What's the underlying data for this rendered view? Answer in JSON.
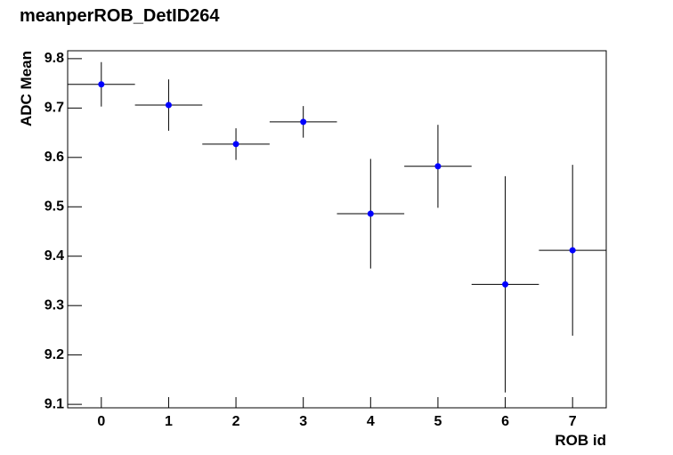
{
  "chart_data": {
    "type": "scatter",
    "title": "meanperROB_DetID264",
    "x_label": "ROB id",
    "y_label": "ADC Mean",
    "x": [
      0,
      1,
      2,
      3,
      4,
      5,
      6,
      7
    ],
    "xerrors": [
      0.5,
      0.5,
      0.5,
      0.5,
      0.5,
      0.5,
      0.5,
      0.5
    ],
    "values": [
      9.748,
      9.706,
      9.627,
      9.672,
      9.486,
      9.582,
      9.343,
      9.412
    ],
    "errors": [
      0.045,
      0.052,
      0.032,
      0.032,
      0.111,
      0.084,
      0.219,
      0.173
    ],
    "color": "#0000ff",
    "xlim": [
      -0.5,
      7.5
    ],
    "xticks": [
      0,
      1,
      2,
      3,
      4,
      5,
      6,
      7
    ],
    "ylim": [
      9.093,
      9.816
    ],
    "yticks": [
      9.1,
      9.2,
      9.3,
      9.4,
      9.5,
      9.6,
      9.7,
      9.8
    ],
    "grid": false
  }
}
